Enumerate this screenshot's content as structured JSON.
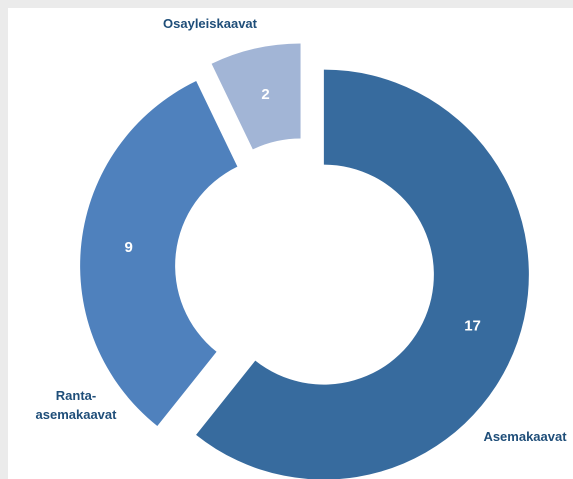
{
  "chart_data": {
    "type": "donut",
    "categories": [
      "Asemakaavat",
      "Ranta-asemakaavat",
      "Osayleiskaavat"
    ],
    "values": [
      17,
      9,
      2
    ],
    "colors": [
      "#376b9e",
      "#4f81bd",
      "#a2b5d6"
    ]
  }
}
